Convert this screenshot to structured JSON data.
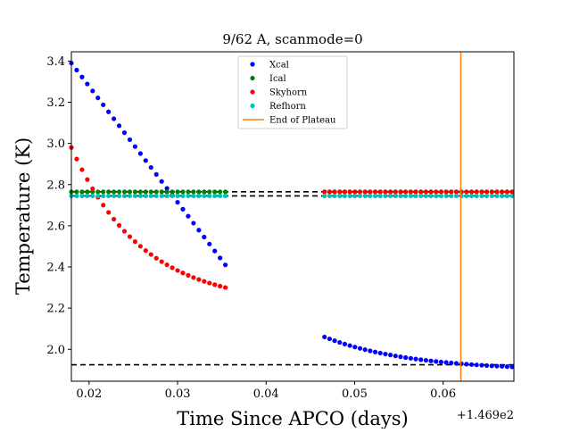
{
  "chart_data": {
    "type": "scatter",
    "title": "9/62 A, scanmode=0",
    "xlabel": "Time Since APCO (days)",
    "ylabel": "Temperature (K)",
    "x_offset_label": "+1.469e2",
    "xlim": [
      0.018,
      0.068
    ],
    "ylim": [
      1.845,
      3.445
    ],
    "x_ticks": [
      0.02,
      0.03,
      0.04,
      0.05,
      0.06
    ],
    "x_tick_labels": [
      "0.02",
      "0.03",
      "0.04",
      "0.05",
      "0.06"
    ],
    "y_ticks": [
      2.0,
      2.2,
      2.4,
      2.6,
      2.8,
      3.0,
      3.2,
      3.4
    ],
    "y_tick_labels": [
      "2.0",
      "2.2",
      "2.4",
      "2.6",
      "2.8",
      "3.0",
      "3.2",
      "3.4"
    ],
    "grid": false,
    "legend_position": "top-center",
    "legend": [
      {
        "name": "Xcal",
        "color": "#0000ff",
        "kind": "marker"
      },
      {
        "name": "Ical",
        "color": "#008000",
        "kind": "marker"
      },
      {
        "name": "Skyhorn",
        "color": "#ff0000",
        "kind": "marker"
      },
      {
        "name": "Refhorn",
        "color": "#00bfbf",
        "kind": "marker"
      },
      {
        "name": "End of Plateau",
        "color": "#ff7f0e",
        "kind": "line"
      }
    ],
    "series": [
      {
        "name": "Xcal",
        "color": "#0000ff",
        "segments": [
          {
            "x_start": 0.018,
            "x_end": 0.0354,
            "n": 30,
            "y_start": 3.39,
            "y_end": 2.41,
            "shape": "linear"
          },
          {
            "x_start": 0.0466,
            "x_end": 0.0678,
            "n": 38,
            "y_start": 2.06,
            "y_end": 1.915,
            "shape": "decay"
          }
        ]
      },
      {
        "name": "Ical",
        "color": "#008000",
        "segments": [
          {
            "x_start": 0.018,
            "x_end": 0.0354,
            "n": 30,
            "y_start": 2.765,
            "y_end": 2.765,
            "shape": "linear"
          },
          {
            "x_start": 0.0466,
            "x_end": 0.0678,
            "n": 38,
            "y_start": 2.765,
            "y_end": 2.765,
            "shape": "linear"
          }
        ]
      },
      {
        "name": "Skyhorn",
        "color": "#ff0000",
        "segments": [
          {
            "x_start": 0.018,
            "x_end": 0.0354,
            "n": 30,
            "y_start": 2.98,
            "y_end": 2.3,
            "shape": "decay"
          },
          {
            "x_start": 0.0466,
            "x_end": 0.0678,
            "n": 38,
            "y_start": 2.765,
            "y_end": 2.765,
            "shape": "linear"
          }
        ]
      },
      {
        "name": "Refhorn",
        "color": "#00bfbf",
        "segments": [
          {
            "x_start": 0.018,
            "x_end": 0.0354,
            "n": 30,
            "y_start": 2.745,
            "y_end": 2.745,
            "shape": "linear"
          },
          {
            "x_start": 0.0466,
            "x_end": 0.0678,
            "n": 38,
            "y_start": 2.745,
            "y_end": 2.745,
            "shape": "linear"
          }
        ]
      }
    ],
    "hlines": [
      {
        "y": 2.765,
        "style": "dashed",
        "color": "#000000"
      },
      {
        "y": 2.745,
        "style": "dashed",
        "color": "#000000"
      },
      {
        "y": 1.925,
        "style": "dashed",
        "color": "#000000"
      }
    ],
    "vlines": [
      {
        "x": 0.062,
        "color": "#ff7f0e",
        "label": "End of Plateau"
      }
    ]
  }
}
